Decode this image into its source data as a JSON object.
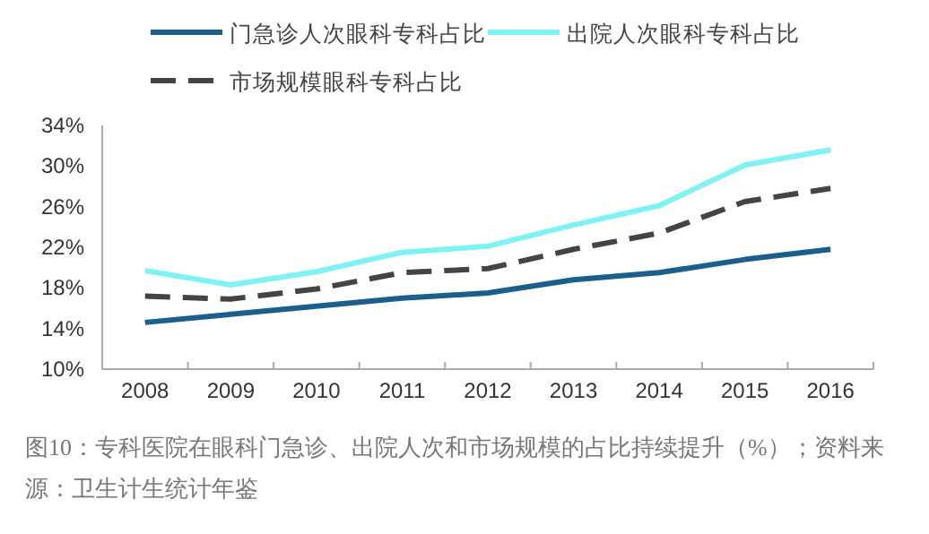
{
  "chart_data": {
    "type": "line",
    "categories": [
      "2008",
      "2009",
      "2010",
      "2011",
      "2012",
      "2013",
      "2014",
      "2015",
      "2016"
    ],
    "series": [
      {
        "name": "门急诊人次眼科专科占比",
        "color": "#1a5f8e",
        "line_style": "solid",
        "values": [
          14.6,
          15.4,
          16.2,
          17.0,
          17.5,
          18.8,
          19.5,
          20.8,
          21.8
        ]
      },
      {
        "name": "出院人次眼科专科占比",
        "color": "#7ff3f3",
        "line_style": "solid",
        "values": [
          19.7,
          18.3,
          19.6,
          21.5,
          22.1,
          24.2,
          26.1,
          30.1,
          31.6
        ]
      },
      {
        "name": "市场规模眼科专科占比",
        "color": "#444444",
        "line_style": "dashed",
        "values": [
          17.2,
          16.9,
          17.9,
          19.5,
          19.9,
          21.8,
          23.4,
          26.5,
          27.8
        ]
      }
    ],
    "ylim": [
      10,
      34
    ],
    "yticks": [
      {
        "value": 10,
        "label": "10%"
      },
      {
        "value": 14,
        "label": "14%"
      },
      {
        "value": 18,
        "label": "18%"
      },
      {
        "value": 22,
        "label": "22%"
      },
      {
        "value": 26,
        "label": "26%"
      },
      {
        "value": 30,
        "label": "30%"
      },
      {
        "value": 34,
        "label": "34%"
      }
    ],
    "grid": false,
    "legend": "top",
    "marker": "none",
    "annotations": [
      "图10：专科医院在眼科门急诊、出院人次和市场规模的占比持续提升（%）；资料来源：卫生计生统计年鉴"
    ]
  }
}
